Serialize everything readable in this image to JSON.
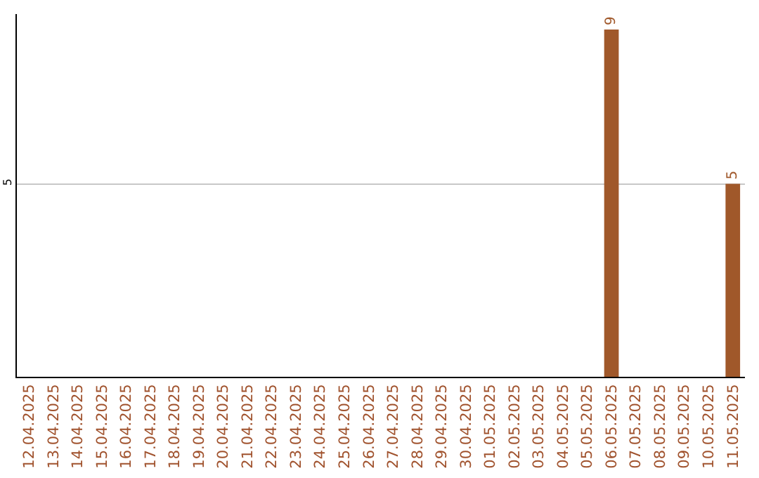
{
  "chart_data": {
    "type": "bar",
    "categories": [
      "12.04.2025",
      "13.04.2025",
      "14.04.2025",
      "15.04.2025",
      "16.04.2025",
      "17.04.2025",
      "18.04.2025",
      "19.04.2025",
      "20.04.2025",
      "21.04.2025",
      "22.04.2025",
      "23.04.2025",
      "24.04.2025",
      "25.04.2025",
      "26.04.2025",
      "27.04.2025",
      "28.04.2025",
      "29.04.2025",
      "30.04.2025",
      "01.05.2025",
      "02.05.2025",
      "03.05.2025",
      "04.05.2025",
      "05.05.2025",
      "06.05.2025",
      "07.05.2025",
      "08.05.2025",
      "09.05.2025",
      "10.05.2025",
      "11.05.2025"
    ],
    "values": [
      null,
      null,
      null,
      null,
      null,
      null,
      null,
      null,
      null,
      null,
      null,
      null,
      null,
      null,
      null,
      null,
      null,
      null,
      null,
      null,
      null,
      null,
      null,
      null,
      9,
      null,
      null,
      null,
      null,
      5
    ],
    "data_labels": true,
    "color": "#a0582a",
    "ylim": [
      0,
      9.4
    ],
    "yticks": [
      5
    ],
    "grid": "y",
    "legend": false
  }
}
